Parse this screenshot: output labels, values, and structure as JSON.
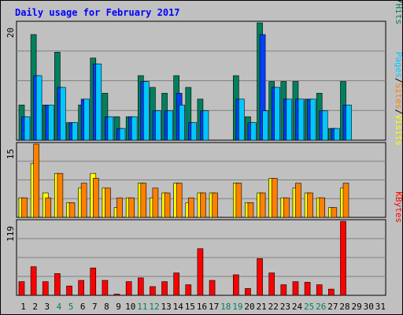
{
  "chart_data": {
    "type": "bar",
    "title": "Daily usage for February 2017",
    "title_color": "#0000ff",
    "days": [
      "1",
      "2",
      "3",
      "4",
      "5",
      "6",
      "7",
      "8",
      "9",
      "10",
      "11",
      "12",
      "13",
      "14",
      "15",
      "16",
      "17",
      "18",
      "19",
      "20",
      "21",
      "22",
      "23",
      "24",
      "25",
      "26",
      "27",
      "28",
      "29",
      "30",
      "31"
    ],
    "weekend_days": [
      "4",
      "5",
      "11",
      "12",
      "18",
      "19",
      "25",
      "26"
    ],
    "weekday_color": "#000000",
    "weekend_color": "#00805c",
    "panels": [
      {
        "id": "hits",
        "ymax_label": "20",
        "ylim": [
          0,
          20
        ],
        "legend": [
          "Hits",
          "Files",
          "Pages"
        ],
        "legend_colors": [
          "#00805c",
          "#0040ff",
          "#00c8ff"
        ],
        "series": [
          {
            "name": "Hits",
            "color": "#00805c",
            "values": [
              6,
              18,
              6,
              15,
              3,
              6,
              14,
              8,
              4,
              4,
              11,
              9,
              8,
              11,
              9,
              7,
              0,
              0,
              11,
              4,
              20,
              10,
              10,
              10,
              7,
              8,
              2,
              10,
              0,
              0,
              0
            ]
          },
          {
            "name": "Files",
            "color": "#0040ff",
            "values": [
              4,
              11,
              6,
              9,
              3,
              7,
              13,
              4,
              2,
              4,
              10,
              5,
              5,
              8,
              3,
              5,
              0,
              0,
              7,
              3,
              18,
              9,
              7,
              7,
              7,
              5,
              2,
              6,
              0,
              0,
              0
            ]
          },
          {
            "name": "Pages",
            "color": "#00c8ff",
            "values": [
              4,
              11,
              6,
              9,
              3,
              7,
              13,
              4,
              2,
              4,
              10,
              5,
              5,
              6,
              3,
              5,
              0,
              0,
              7,
              3,
              5,
              9,
              7,
              7,
              7,
              5,
              2,
              6,
              0,
              0,
              0
            ]
          }
        ]
      },
      {
        "id": "visits",
        "ymax_label": "15",
        "ylim": [
          0,
          15
        ],
        "legend": [
          "Visits",
          "Sites",
          "Pages"
        ],
        "legend_colors": [
          "#ffff00",
          "#ff8000",
          "#00c8ff"
        ],
        "series": [
          {
            "name": "Visits",
            "color": "#ffff00",
            "values": [
              4,
              11,
              5,
              9,
              3,
              6,
              9,
              6,
              2,
              4,
              7,
              4,
              5,
              7,
              3,
              5,
              5,
              0,
              7,
              3,
              5,
              8,
              4,
              6,
              5,
              4,
              2,
              6,
              0,
              0,
              0
            ]
          },
          {
            "name": "Sites",
            "color": "#ff8000",
            "values": [
              4,
              15,
              4,
              9,
              3,
              7,
              8,
              6,
              4,
              4,
              7,
              6,
              5,
              7,
              4,
              5,
              5,
              0,
              7,
              3,
              5,
              8,
              4,
              7,
              5,
              4,
              2,
              7,
              0,
              0,
              0
            ]
          }
        ]
      },
      {
        "id": "kbytes",
        "ymax_label": "119",
        "ylim": [
          0,
          119
        ],
        "legend": [
          "KBytes"
        ],
        "legend_colors": [
          "#ff0000"
        ],
        "series": [
          {
            "name": "KBytes",
            "color": "#ff0000",
            "values": [
              22,
              46,
              22,
              35,
              15,
              24,
              44,
              24,
              2,
              22,
              28,
              14,
              22,
              36,
              17,
              75,
              24,
              0,
              33,
              11,
              59,
              36,
              17,
              22,
              21,
              17,
              10,
              119,
              0,
              0,
              0
            ]
          }
        ]
      }
    ]
  }
}
